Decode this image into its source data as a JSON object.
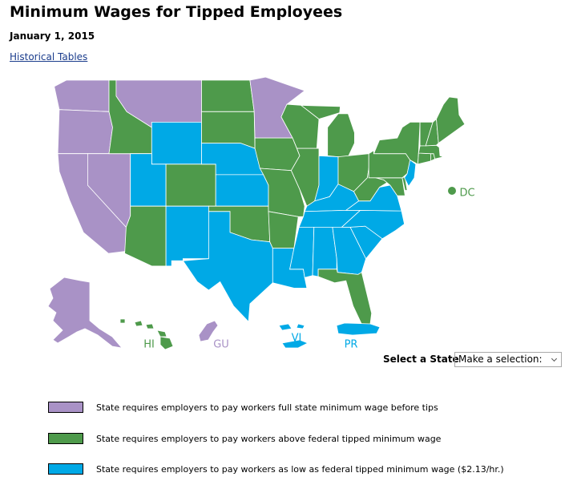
{
  "header": {
    "title": "Minimum Wages for Tipped Employees",
    "date": "January 1, 2015",
    "link": "Historical Tables"
  },
  "map": {
    "labels": [
      {
        "text": "HI",
        "color": "#4e9a4b"
      },
      {
        "text": "GU",
        "color": "#a992c6"
      },
      {
        "text": "VI",
        "color": "#00a9e6"
      },
      {
        "text": "PR",
        "color": "#00a9e6"
      },
      {
        "text": "DC",
        "color": "#4e9a4b"
      }
    ]
  },
  "state_selector": {
    "label": "Select a State",
    "placeholder": "Make a selection:"
  },
  "legend": [
    {
      "text": "State requires employers to pay workers full state minimum wage before tips",
      "color": "#a992c6"
    },
    {
      "text": "State requires employers to pay workers above federal tipped minimum wage",
      "color": "#4e9a4b"
    },
    {
      "text": "State requires employers to pay workers as low as federal tipped minimum wage ($2.13/hr.)",
      "color": "#00a9e6"
    }
  ]
}
